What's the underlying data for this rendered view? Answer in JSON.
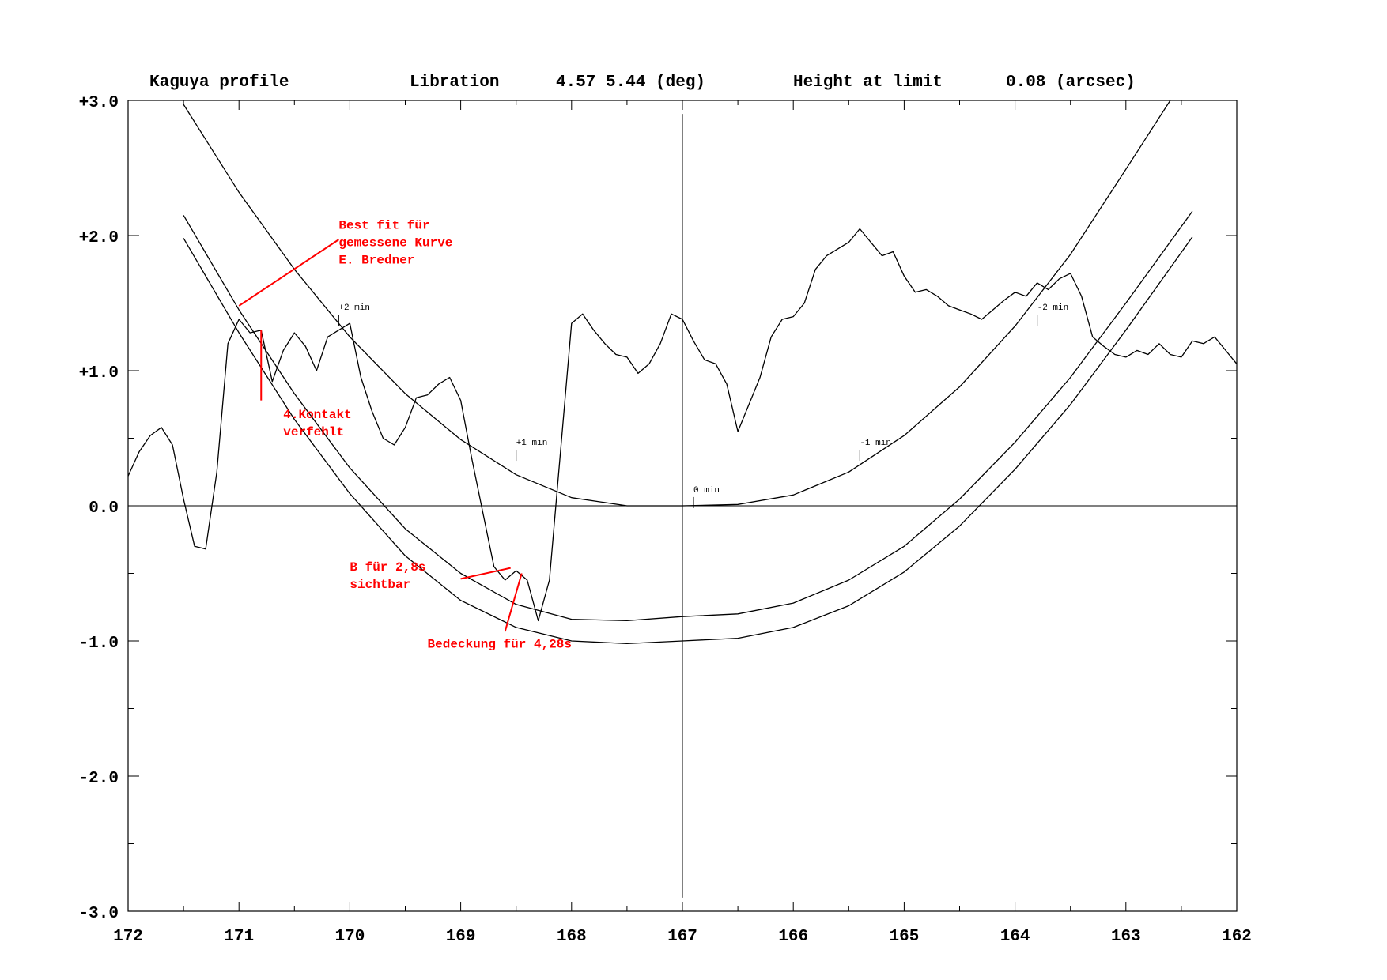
{
  "header": {
    "title": "Kaguya profile",
    "libration_label": "Libration",
    "libration_value": "4.57 5.44 (deg)",
    "height_label": "Height at limit",
    "height_value": "0.08 (arcsec)"
  },
  "colors": {
    "axes": "#000000",
    "annotation": "#ff0000"
  },
  "chart_data": {
    "type": "line",
    "title": "Kaguya profile",
    "xlim": [
      172,
      162
    ],
    "ylim": [
      -3.0,
      3.0
    ],
    "x_reversed": true,
    "x_ticks": [
      "172",
      "171",
      "170",
      "169",
      "168",
      "167",
      "166",
      "165",
      "164",
      "163",
      "162"
    ],
    "y_ticks": [
      "+3.0",
      "+2.0",
      "+1.0",
      "0.0",
      "-1.0",
      "-2.0",
      "-3.0"
    ],
    "grid": false,
    "series": [
      {
        "kind": "limb-profile",
        "x": [
          172.0,
          171.9,
          171.8,
          171.7,
          171.6,
          171.5,
          171.4,
          171.3,
          171.2,
          171.1,
          171.0,
          170.9,
          170.8,
          170.7,
          170.6,
          170.5,
          170.4,
          170.3,
          170.2,
          170.1,
          170.0,
          169.9,
          169.8,
          169.7,
          169.6,
          169.5,
          169.4,
          169.3,
          169.2,
          169.1,
          169.0,
          168.9,
          168.8,
          168.7,
          168.6,
          168.5,
          168.4,
          168.3,
          168.2,
          168.1,
          168.0,
          167.9,
          167.8,
          167.7,
          167.6,
          167.5,
          167.4,
          167.3,
          167.2,
          167.1,
          167.0,
          166.9,
          166.8,
          166.7,
          166.6,
          166.5,
          166.4,
          166.3,
          166.2,
          166.1,
          166.0,
          165.9,
          165.8,
          165.7,
          165.6,
          165.5,
          165.4,
          165.3,
          165.2,
          165.1,
          165.0,
          164.9,
          164.8,
          164.7,
          164.6,
          164.5,
          164.4,
          164.3,
          164.2,
          164.1,
          164.0,
          163.9,
          163.8,
          163.7,
          163.6,
          163.5,
          163.4,
          163.3,
          163.2,
          163.1,
          163.0,
          162.9,
          162.8,
          162.7,
          162.6,
          162.5,
          162.4,
          162.3,
          162.2,
          162.1,
          162.0
        ],
        "y": [
          0.22,
          0.4,
          0.52,
          0.58,
          0.45,
          0.05,
          -0.3,
          -0.32,
          0.25,
          1.2,
          1.38,
          1.28,
          1.3,
          0.92,
          1.15,
          1.28,
          1.18,
          1.0,
          1.25,
          1.3,
          1.35,
          0.95,
          0.7,
          0.5,
          0.45,
          0.58,
          0.8,
          0.82,
          0.9,
          0.95,
          0.78,
          0.35,
          -0.05,
          -0.45,
          -0.55,
          -0.48,
          -0.55,
          -0.85,
          -0.55,
          0.4,
          1.35,
          1.42,
          1.3,
          1.2,
          1.12,
          1.1,
          0.98,
          1.05,
          1.2,
          1.42,
          1.38,
          1.22,
          1.08,
          1.05,
          0.9,
          0.55,
          0.75,
          0.95,
          1.25,
          1.38,
          1.4,
          1.5,
          1.75,
          1.85,
          1.9,
          1.95,
          2.05,
          1.95,
          1.85,
          1.88,
          1.7,
          1.58,
          1.6,
          1.55,
          1.48,
          1.45,
          1.42,
          1.38,
          1.45,
          1.52,
          1.58,
          1.55,
          1.65,
          1.6,
          1.68,
          1.72,
          1.55,
          1.25,
          1.18,
          1.12,
          1.1,
          1.15,
          1.12,
          1.2,
          1.12,
          1.1,
          1.22,
          1.2,
          1.25,
          1.15,
          1.05
        ]
      },
      {
        "kind": "limit-curve-upper",
        "x": [
          171.5,
          171.0,
          170.5,
          170.0,
          169.5,
          169.0,
          168.5,
          168.0,
          167.5,
          167.0,
          166.5,
          166.0,
          165.5,
          165.0,
          164.5,
          164.0,
          163.5,
          163.0,
          162.6
        ],
        "y": [
          2.97,
          2.32,
          1.75,
          1.25,
          0.83,
          0.49,
          0.23,
          0.06,
          0.0,
          0.0,
          0.01,
          0.08,
          0.25,
          0.52,
          0.88,
          1.33,
          1.86,
          2.49,
          3.0
        ]
      },
      {
        "kind": "limit-curve-middle",
        "x": [
          171.5,
          171.0,
          170.5,
          170.0,
          169.5,
          169.0,
          168.5,
          168.0,
          167.5,
          167.0,
          166.5,
          166.0,
          165.5,
          165.0,
          164.5,
          164.0,
          163.5,
          163.0,
          162.4
        ],
        "y": [
          2.15,
          1.45,
          0.83,
          0.28,
          -0.17,
          -0.5,
          -0.73,
          -0.84,
          -0.85,
          -0.82,
          -0.8,
          -0.72,
          -0.55,
          -0.3,
          0.05,
          0.47,
          0.95,
          1.5,
          2.18
        ]
      },
      {
        "kind": "limit-curve-lower",
        "x": [
          171.5,
          171.0,
          170.5,
          170.0,
          169.5,
          169.0,
          168.5,
          168.0,
          167.5,
          167.0,
          166.5,
          166.0,
          165.5,
          165.0,
          164.5,
          164.0,
          163.5,
          163.0,
          162.4
        ],
        "y": [
          1.98,
          1.28,
          0.64,
          0.09,
          -0.37,
          -0.7,
          -0.9,
          -1.0,
          -1.02,
          -1.0,
          -0.98,
          -0.9,
          -0.74,
          -0.49,
          -0.15,
          0.27,
          0.75,
          1.3,
          1.99
        ]
      }
    ],
    "time_marks": [
      {
        "label": "+2 min",
        "x": 170.1,
        "y": 1.45
      },
      {
        "label": "+1 min",
        "x": 168.5,
        "y": 0.45
      },
      {
        "label": "0 min",
        "x": 166.9,
        "y": 0.1
      },
      {
        "label": "-1 min",
        "x": 165.4,
        "y": 0.45
      },
      {
        "label": "-2 min",
        "x": 163.8,
        "y": 1.45
      }
    ],
    "annotations": [
      {
        "lines": [
          "Best fit für",
          "gemessene Kurve",
          "E. Bredner"
        ],
        "text_x": 170.1,
        "text_y": 2.05,
        "pointer": [
          [
            170.1,
            1.97
          ],
          [
            171.0,
            1.48
          ]
        ]
      },
      {
        "lines": [
          "4.Kontakt",
          "verfehlt"
        ],
        "text_x": 170.6,
        "text_y": 0.65,
        "pointer": [
          [
            170.8,
            0.78
          ],
          [
            170.8,
            1.3
          ]
        ]
      },
      {
        "lines": [
          "B für 2,8s",
          "sichtbar"
        ],
        "text_x": 170.0,
        "text_y": -0.48,
        "pointer": [
          [
            169.0,
            -0.54
          ],
          [
            168.55,
            -0.46
          ]
        ]
      },
      {
        "lines": [
          "Bedeckung für 4,28s"
        ],
        "text_x": 169.3,
        "text_y": -1.05,
        "pointer": [
          [
            168.6,
            -0.93
          ],
          [
            168.45,
            -0.5
          ]
        ]
      }
    ]
  }
}
